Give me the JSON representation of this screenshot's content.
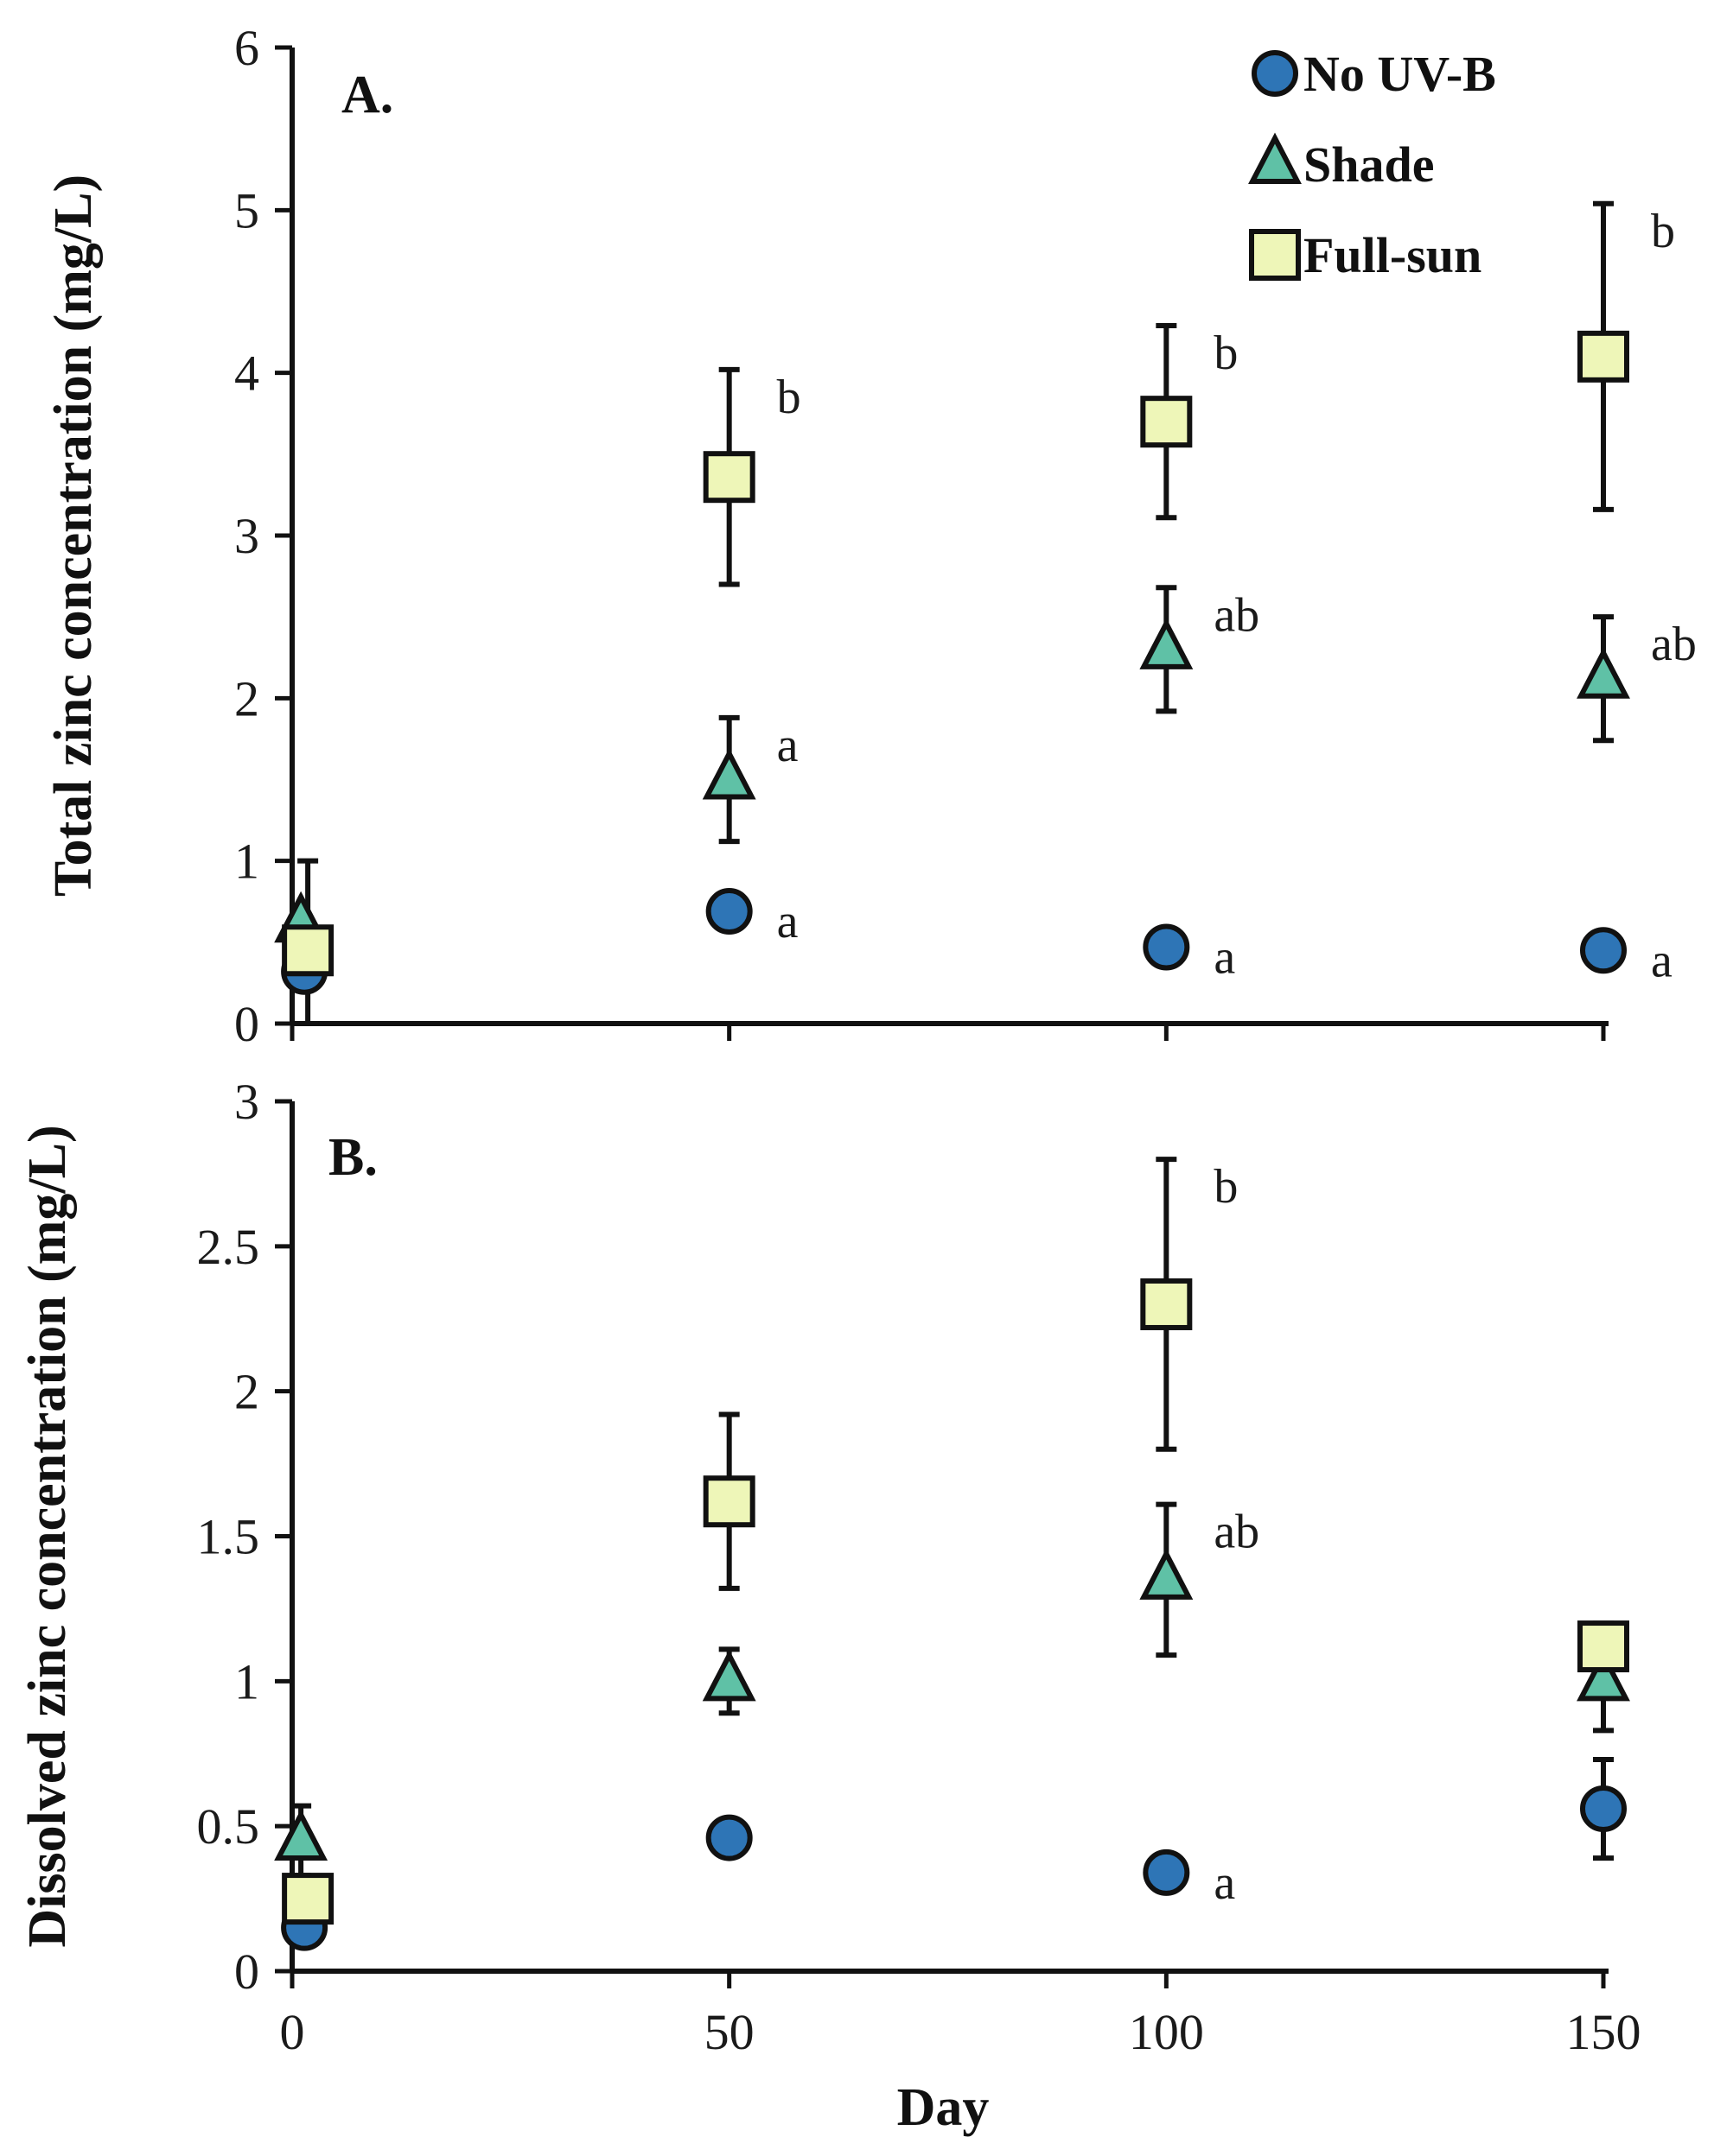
{
  "colors": {
    "no_uvb": "#2E75B6",
    "shade": "#5FC1A6",
    "full_sun": "#EEF6B8",
    "stroke": "#111111"
  },
  "legend": [
    {
      "key": "no_uvb",
      "label": "No UV-B",
      "marker": "circle"
    },
    {
      "key": "shade",
      "label": "Shade",
      "marker": "triangle"
    },
    {
      "key": "full_sun",
      "label": "Full-sun",
      "marker": "square"
    }
  ],
  "chart_data": [
    {
      "type": "scatter",
      "panel_label": "A.",
      "ylabel": "Total zinc concentration (mg/L)",
      "xlabel": "Day",
      "xlim": [
        0,
        150
      ],
      "ylim": [
        0,
        6
      ],
      "xticks": [
        0,
        50,
        100,
        150
      ],
      "yticks": [
        0,
        1,
        2,
        3,
        4,
        5,
        6
      ],
      "series": [
        {
          "name": "No UV-B",
          "key": "no_uvb",
          "marker": "circle",
          "x": [
            1,
            50,
            100,
            150
          ],
          "y": [
            0.32,
            0.69,
            0.47,
            0.45
          ],
          "err": [
            0,
            0,
            0,
            0
          ],
          "labels": [
            "",
            "a",
            "a",
            "a"
          ]
        },
        {
          "name": "Shade",
          "key": "shade",
          "marker": "triangle",
          "x": [
            1,
            50,
            100,
            150
          ],
          "y": [
            0.62,
            1.5,
            2.3,
            2.12
          ],
          "err": [
            0,
            0.38,
            0.38,
            0.38
          ],
          "labels": [
            "",
            "a",
            "ab",
            "ab"
          ]
        },
        {
          "name": "Full-sun",
          "key": "full_sun",
          "marker": "square",
          "x": [
            1,
            50,
            100,
            150
          ],
          "y": [
            0.45,
            3.36,
            3.7,
            4.1
          ],
          "err": [
            0.55,
            0.66,
            0.59,
            0.94
          ],
          "labels": [
            "",
            "b",
            "b",
            "b"
          ]
        }
      ]
    },
    {
      "type": "scatter",
      "panel_label": "B.",
      "ylabel": "Dissolved zinc concentration (mg/L)",
      "xlabel": "Day",
      "xlim": [
        0,
        150
      ],
      "ylim": [
        0,
        3
      ],
      "xticks": [
        0,
        50,
        100,
        150
      ],
      "yticks": [
        0,
        0.5,
        1,
        1.5,
        2,
        2.5,
        3
      ],
      "ytick_labels": [
        "0",
        "0.5",
        "1",
        "1.5",
        "2",
        "2.5",
        "3"
      ],
      "series": [
        {
          "name": "No UV-B",
          "key": "no_uvb",
          "marker": "circle",
          "x": [
            1,
            50,
            100,
            150
          ],
          "y": [
            0.15,
            0.46,
            0.34,
            0.56
          ],
          "err": [
            0,
            0,
            0,
            0.17
          ],
          "labels": [
            "",
            "",
            "a",
            ""
          ]
        },
        {
          "name": "Shade",
          "key": "shade",
          "marker": "triangle",
          "x": [
            1,
            50,
            100,
            150
          ],
          "y": [
            0.45,
            1.0,
            1.35,
            1.0
          ],
          "err": [
            0.12,
            0.11,
            0.26,
            0.17
          ],
          "labels": [
            "",
            "",
            "ab",
            ""
          ]
        },
        {
          "name": "Full-sun",
          "key": "full_sun",
          "marker": "square",
          "x": [
            1,
            50,
            100,
            150
          ],
          "y": [
            0.25,
            1.62,
            2.3,
            1.12
          ],
          "err": [
            0.07,
            0.3,
            0.5,
            0.08
          ],
          "labels": [
            "",
            "",
            "b",
            ""
          ]
        }
      ]
    }
  ]
}
